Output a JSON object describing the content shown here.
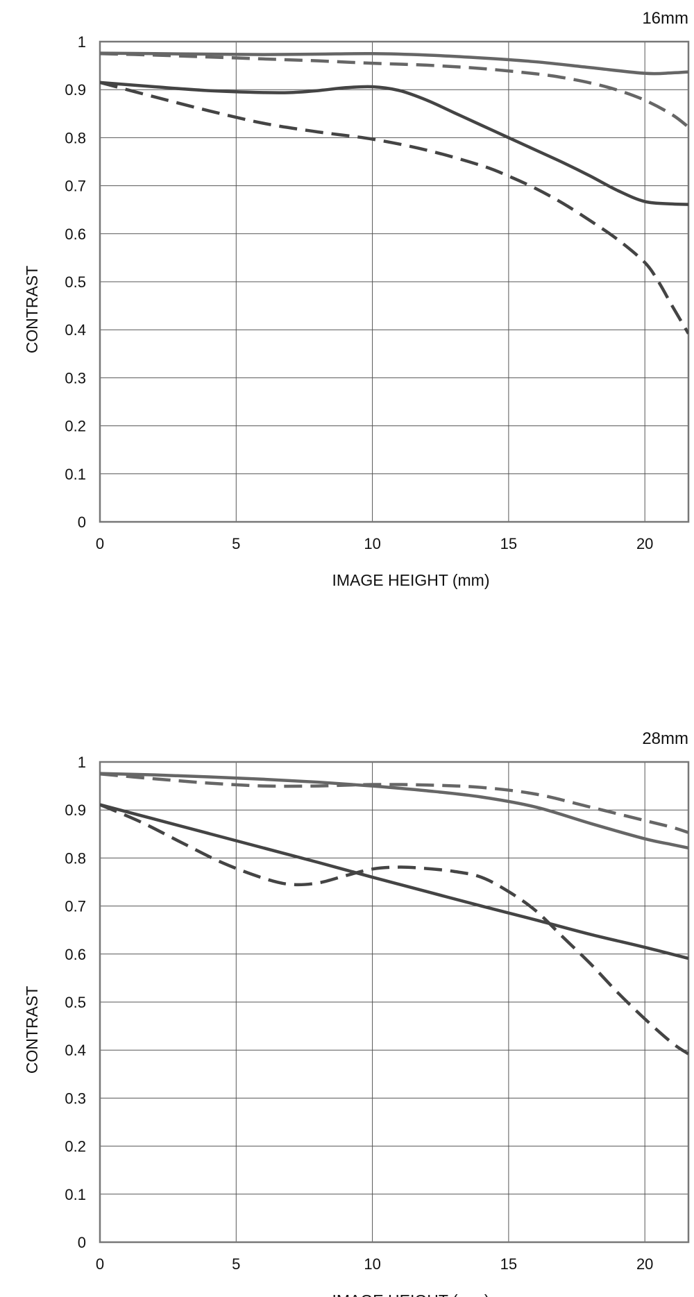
{
  "chart_data": [
    {
      "type": "line",
      "title": "16mm",
      "xlabel": "IMAGE HEIGHT (mm)",
      "ylabel": "CONTRAST",
      "xlim": [
        0,
        21.6
      ],
      "ylim": [
        0,
        1
      ],
      "xticks": [
        0,
        5,
        10,
        15,
        20
      ],
      "yticks": [
        0,
        0.1,
        0.2,
        0.3,
        0.4,
        0.5,
        0.6,
        0.7,
        0.8,
        0.9,
        1
      ],
      "ytick_labels": [
        "0",
        "0.1",
        "0.2",
        "0.3",
        "0.4",
        "0.5",
        "0.6",
        "0.7",
        "0.8",
        "0.9",
        "1"
      ],
      "grid": true,
      "series": [
        {
          "style": "solid",
          "color": "#666666",
          "x": [
            0,
            2,
            4,
            6,
            8,
            10,
            12,
            14,
            16,
            18,
            20,
            21,
            21.6
          ],
          "y": [
            0.976,
            0.975,
            0.974,
            0.973,
            0.974,
            0.975,
            0.972,
            0.966,
            0.958,
            0.946,
            0.934,
            0.935,
            0.937
          ]
        },
        {
          "style": "dashed",
          "color": "#666666",
          "x": [
            0,
            2,
            4,
            6,
            8,
            10,
            12,
            14,
            16,
            17,
            18,
            19,
            20,
            21,
            21.6
          ],
          "y": [
            0.975,
            0.972,
            0.968,
            0.964,
            0.96,
            0.955,
            0.951,
            0.944,
            0.933,
            0.925,
            0.914,
            0.899,
            0.878,
            0.848,
            0.822
          ]
        },
        {
          "style": "solid",
          "color": "#444444",
          "x": [
            0,
            2,
            4,
            6,
            7,
            8,
            9,
            10,
            11,
            12,
            13,
            14,
            15,
            16,
            17,
            18,
            19,
            20,
            21,
            21.6
          ],
          "y": [
            0.915,
            0.906,
            0.898,
            0.894,
            0.894,
            0.898,
            0.904,
            0.906,
            0.898,
            0.878,
            0.852,
            0.826,
            0.8,
            0.774,
            0.748,
            0.72,
            0.69,
            0.667,
            0.662,
            0.661
          ]
        },
        {
          "style": "dashed",
          "color": "#444444",
          "x": [
            0,
            2,
            4,
            6,
            8,
            10,
            12,
            14,
            15,
            16,
            17,
            18,
            19,
            20,
            20.5,
            21,
            21.6
          ],
          "y": [
            0.915,
            0.885,
            0.856,
            0.83,
            0.812,
            0.797,
            0.774,
            0.742,
            0.72,
            0.694,
            0.663,
            0.627,
            0.588,
            0.54,
            0.5,
            0.45,
            0.392
          ]
        }
      ]
    },
    {
      "type": "line",
      "title": "28mm",
      "xlabel": "IMAGE HEIGHT (mm)",
      "ylabel": "CONTRAST",
      "xlim": [
        0,
        21.6
      ],
      "ylim": [
        0,
        1
      ],
      "xticks": [
        0,
        5,
        10,
        15,
        20
      ],
      "yticks": [
        0,
        0.1,
        0.2,
        0.3,
        0.4,
        0.5,
        0.6,
        0.7,
        0.8,
        0.9,
        1
      ],
      "ytick_labels": [
        "0",
        "0.1",
        "0.2",
        "0.3",
        "0.4",
        "0.5",
        "0.6",
        "0.7",
        "0.8",
        "0.9",
        "1"
      ],
      "grid": true,
      "series": [
        {
          "style": "solid",
          "color": "#666666",
          "x": [
            0,
            2,
            4,
            6,
            8,
            10,
            12,
            14,
            16,
            18,
            20,
            21,
            21.6
          ],
          "y": [
            0.976,
            0.973,
            0.969,
            0.964,
            0.958,
            0.95,
            0.94,
            0.927,
            0.906,
            0.872,
            0.84,
            0.828,
            0.821
          ]
        },
        {
          "style": "dashed",
          "color": "#666666",
          "x": [
            0,
            2,
            4,
            6,
            8,
            10,
            12,
            14,
            16,
            18,
            20,
            21,
            21.6
          ],
          "y": [
            0.975,
            0.965,
            0.956,
            0.95,
            0.95,
            0.953,
            0.952,
            0.947,
            0.933,
            0.906,
            0.878,
            0.864,
            0.853
          ]
        },
        {
          "style": "solid",
          "color": "#444444",
          "x": [
            0,
            2,
            4,
            6,
            8,
            10,
            12,
            14,
            16,
            18,
            20,
            21.6
          ],
          "y": [
            0.911,
            0.881,
            0.851,
            0.821,
            0.791,
            0.76,
            0.73,
            0.7,
            0.671,
            0.641,
            0.614,
            0.591
          ]
        },
        {
          "style": "dashed",
          "color": "#444444",
          "x": [
            0,
            1.5,
            3,
            4.5,
            6,
            7,
            8,
            9,
            10,
            11,
            12,
            13,
            14,
            15,
            16,
            17,
            18,
            19,
            20,
            21,
            21.6
          ],
          "y": [
            0.911,
            0.875,
            0.832,
            0.79,
            0.758,
            0.745,
            0.748,
            0.763,
            0.777,
            0.781,
            0.778,
            0.772,
            0.76,
            0.73,
            0.69,
            0.635,
            0.58,
            0.52,
            0.465,
            0.415,
            0.392
          ]
        }
      ]
    }
  ]
}
